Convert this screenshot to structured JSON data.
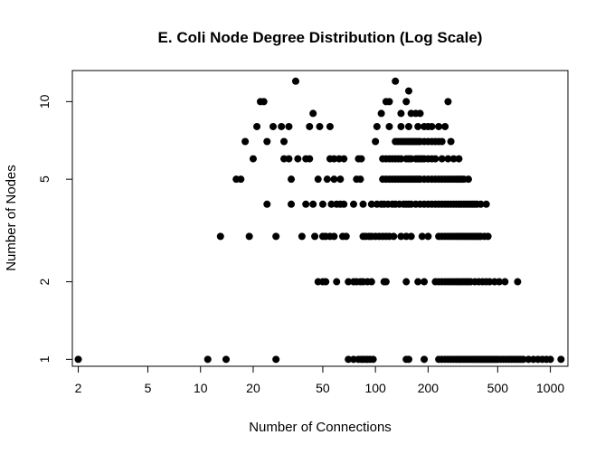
{
  "chart_data": {
    "type": "scatter",
    "title": "E. Coli Node Degree Distribution (Log Scale)",
    "xlabel": "Number of Connections",
    "ylabel": "Number of Nodes",
    "log_x": true,
    "log_y": true,
    "xlim": [
      1.85,
      1260
    ],
    "ylim": [
      0.94,
      13.2
    ],
    "x_ticks": [
      2,
      5,
      10,
      20,
      50,
      100,
      200,
      500,
      1000
    ],
    "x_tick_labels": [
      "2",
      "5",
      "10",
      "20",
      "50",
      "100",
      "200",
      "500",
      "1000"
    ],
    "y_ticks": [
      1,
      2,
      5,
      10
    ],
    "y_tick_labels": [
      "1",
      "2",
      "5",
      "10"
    ],
    "point_color": "#000000",
    "series": [
      {
        "points": [
          [
            2,
            1
          ],
          [
            11,
            1
          ],
          [
            14,
            1
          ],
          [
            27,
            1
          ],
          [
            70,
            1
          ],
          [
            75,
            1
          ],
          [
            80,
            1
          ],
          [
            83,
            1
          ],
          [
            85,
            1
          ],
          [
            88,
            1
          ],
          [
            90,
            1
          ],
          [
            93,
            1
          ],
          [
            97,
            1
          ],
          [
            150,
            1
          ],
          [
            155,
            1
          ],
          [
            190,
            1
          ],
          [
            230,
            1
          ],
          [
            240,
            1
          ],
          [
            250,
            1
          ],
          [
            260,
            1
          ],
          [
            270,
            1
          ],
          [
            280,
            1
          ],
          [
            290,
            1
          ],
          [
            300,
            1
          ],
          [
            310,
            1
          ],
          [
            320,
            1
          ],
          [
            330,
            1
          ],
          [
            340,
            1
          ],
          [
            350,
            1
          ],
          [
            360,
            1
          ],
          [
            370,
            1
          ],
          [
            380,
            1
          ],
          [
            390,
            1
          ],
          [
            400,
            1
          ],
          [
            410,
            1
          ],
          [
            420,
            1
          ],
          [
            430,
            1
          ],
          [
            440,
            1
          ],
          [
            450,
            1
          ],
          [
            460,
            1
          ],
          [
            470,
            1
          ],
          [
            480,
            1
          ],
          [
            490,
            1
          ],
          [
            500,
            1
          ],
          [
            520,
            1
          ],
          [
            540,
            1
          ],
          [
            560,
            1
          ],
          [
            580,
            1
          ],
          [
            600,
            1
          ],
          [
            620,
            1
          ],
          [
            640,
            1
          ],
          [
            660,
            1
          ],
          [
            680,
            1
          ],
          [
            700,
            1
          ],
          [
            750,
            1
          ],
          [
            800,
            1
          ],
          [
            850,
            1
          ],
          [
            900,
            1
          ],
          [
            950,
            1
          ],
          [
            1000,
            1
          ],
          [
            1150,
            1
          ],
          [
            47,
            2
          ],
          [
            50,
            2
          ],
          [
            52,
            2
          ],
          [
            60,
            2
          ],
          [
            70,
            2
          ],
          [
            75,
            2
          ],
          [
            78,
            2
          ],
          [
            82,
            2
          ],
          [
            85,
            2
          ],
          [
            90,
            2
          ],
          [
            95,
            2
          ],
          [
            112,
            2
          ],
          [
            115,
            2
          ],
          [
            150,
            2
          ],
          [
            175,
            2
          ],
          [
            190,
            2
          ],
          [
            220,
            2
          ],
          [
            230,
            2
          ],
          [
            240,
            2
          ],
          [
            250,
            2
          ],
          [
            260,
            2
          ],
          [
            270,
            2
          ],
          [
            280,
            2
          ],
          [
            290,
            2
          ],
          [
            300,
            2
          ],
          [
            310,
            2
          ],
          [
            320,
            2
          ],
          [
            330,
            2
          ],
          [
            340,
            2
          ],
          [
            350,
            2
          ],
          [
            370,
            2
          ],
          [
            390,
            2
          ],
          [
            410,
            2
          ],
          [
            430,
            2
          ],
          [
            450,
            2
          ],
          [
            480,
            2
          ],
          [
            510,
            2
          ],
          [
            550,
            2
          ],
          [
            650,
            2
          ],
          [
            13,
            3
          ],
          [
            19,
            3
          ],
          [
            27,
            3
          ],
          [
            38,
            3
          ],
          [
            45,
            3
          ],
          [
            50,
            3
          ],
          [
            52,
            3
          ],
          [
            55,
            3
          ],
          [
            58,
            3
          ],
          [
            65,
            3
          ],
          [
            68,
            3
          ],
          [
            85,
            3
          ],
          [
            88,
            3
          ],
          [
            92,
            3
          ],
          [
            95,
            3
          ],
          [
            100,
            3
          ],
          [
            105,
            3
          ],
          [
            110,
            3
          ],
          [
            115,
            3
          ],
          [
            120,
            3
          ],
          [
            127,
            3
          ],
          [
            140,
            3
          ],
          [
            150,
            3
          ],
          [
            160,
            3
          ],
          [
            185,
            3
          ],
          [
            200,
            3
          ],
          [
            230,
            3
          ],
          [
            240,
            3
          ],
          [
            250,
            3
          ],
          [
            260,
            3
          ],
          [
            270,
            3
          ],
          [
            280,
            3
          ],
          [
            290,
            3
          ],
          [
            300,
            3
          ],
          [
            310,
            3
          ],
          [
            320,
            3
          ],
          [
            330,
            3
          ],
          [
            340,
            3
          ],
          [
            350,
            3
          ],
          [
            360,
            3
          ],
          [
            370,
            3
          ],
          [
            380,
            3
          ],
          [
            390,
            3
          ],
          [
            400,
            3
          ],
          [
            420,
            3
          ],
          [
            440,
            3
          ],
          [
            24,
            4
          ],
          [
            33,
            4
          ],
          [
            40,
            4
          ],
          [
            44,
            4
          ],
          [
            50,
            4
          ],
          [
            56,
            4
          ],
          [
            60,
            4
          ],
          [
            63,
            4
          ],
          [
            66,
            4
          ],
          [
            75,
            4
          ],
          [
            85,
            4
          ],
          [
            95,
            4
          ],
          [
            102,
            4
          ],
          [
            108,
            4
          ],
          [
            112,
            4
          ],
          [
            118,
            4
          ],
          [
            125,
            4
          ],
          [
            130,
            4
          ],
          [
            137,
            4
          ],
          [
            145,
            4
          ],
          [
            150,
            4
          ],
          [
            155,
            4
          ],
          [
            160,
            4
          ],
          [
            170,
            4
          ],
          [
            180,
            4
          ],
          [
            190,
            4
          ],
          [
            200,
            4
          ],
          [
            210,
            4
          ],
          [
            220,
            4
          ],
          [
            230,
            4
          ],
          [
            240,
            4
          ],
          [
            250,
            4
          ],
          [
            260,
            4
          ],
          [
            270,
            4
          ],
          [
            280,
            4
          ],
          [
            290,
            4
          ],
          [
            300,
            4
          ],
          [
            310,
            4
          ],
          [
            320,
            4
          ],
          [
            330,
            4
          ],
          [
            340,
            4
          ],
          [
            350,
            4
          ],
          [
            360,
            4
          ],
          [
            370,
            4
          ],
          [
            380,
            4
          ],
          [
            400,
            4
          ],
          [
            430,
            4
          ],
          [
            16,
            5
          ],
          [
            17,
            5
          ],
          [
            33,
            5
          ],
          [
            47,
            5
          ],
          [
            53,
            5
          ],
          [
            58,
            5
          ],
          [
            63,
            5
          ],
          [
            78,
            5
          ],
          [
            82,
            5
          ],
          [
            110,
            5
          ],
          [
            115,
            5
          ],
          [
            120,
            5
          ],
          [
            125,
            5
          ],
          [
            130,
            5
          ],
          [
            135,
            5
          ],
          [
            140,
            5
          ],
          [
            145,
            5
          ],
          [
            150,
            5
          ],
          [
            155,
            5
          ],
          [
            160,
            5
          ],
          [
            165,
            5
          ],
          [
            170,
            5
          ],
          [
            175,
            5
          ],
          [
            180,
            5
          ],
          [
            190,
            5
          ],
          [
            200,
            5
          ],
          [
            210,
            5
          ],
          [
            220,
            5
          ],
          [
            230,
            5
          ],
          [
            240,
            5
          ],
          [
            250,
            5
          ],
          [
            260,
            5
          ],
          [
            270,
            5
          ],
          [
            280,
            5
          ],
          [
            290,
            5
          ],
          [
            300,
            5
          ],
          [
            310,
            5
          ],
          [
            320,
            5
          ],
          [
            340,
            5
          ],
          [
            20,
            6
          ],
          [
            30,
            6
          ],
          [
            32,
            6
          ],
          [
            36,
            6
          ],
          [
            40,
            6
          ],
          [
            42,
            6
          ],
          [
            55,
            6
          ],
          [
            58,
            6
          ],
          [
            62,
            6
          ],
          [
            66,
            6
          ],
          [
            80,
            6
          ],
          [
            83,
            6
          ],
          [
            110,
            6
          ],
          [
            115,
            6
          ],
          [
            120,
            6
          ],
          [
            125,
            6
          ],
          [
            130,
            6
          ],
          [
            135,
            6
          ],
          [
            140,
            6
          ],
          [
            150,
            6
          ],
          [
            155,
            6
          ],
          [
            160,
            6
          ],
          [
            170,
            6
          ],
          [
            175,
            6
          ],
          [
            180,
            6
          ],
          [
            185,
            6
          ],
          [
            190,
            6
          ],
          [
            200,
            6
          ],
          [
            210,
            6
          ],
          [
            220,
            6
          ],
          [
            240,
            6
          ],
          [
            260,
            6
          ],
          [
            280,
            6
          ],
          [
            300,
            6
          ],
          [
            18,
            7
          ],
          [
            24,
            7
          ],
          [
            30,
            7
          ],
          [
            100,
            7
          ],
          [
            130,
            7
          ],
          [
            135,
            7
          ],
          [
            140,
            7
          ],
          [
            145,
            7
          ],
          [
            150,
            7
          ],
          [
            155,
            7
          ],
          [
            160,
            7
          ],
          [
            165,
            7
          ],
          [
            170,
            7
          ],
          [
            175,
            7
          ],
          [
            180,
            7
          ],
          [
            190,
            7
          ],
          [
            200,
            7
          ],
          [
            210,
            7
          ],
          [
            220,
            7
          ],
          [
            230,
            7
          ],
          [
            240,
            7
          ],
          [
            270,
            7
          ],
          [
            21,
            8
          ],
          [
            26,
            8
          ],
          [
            29,
            8
          ],
          [
            32,
            8
          ],
          [
            42,
            8
          ],
          [
            48,
            8
          ],
          [
            55,
            8
          ],
          [
            102,
            8
          ],
          [
            120,
            8
          ],
          [
            140,
            8
          ],
          [
            155,
            8
          ],
          [
            175,
            8
          ],
          [
            190,
            8
          ],
          [
            200,
            8
          ],
          [
            210,
            8
          ],
          [
            230,
            8
          ],
          [
            250,
            8
          ],
          [
            44,
            9
          ],
          [
            108,
            9
          ],
          [
            140,
            9
          ],
          [
            160,
            9
          ],
          [
            170,
            9
          ],
          [
            180,
            9
          ],
          [
            22,
            10
          ],
          [
            23,
            10
          ],
          [
            115,
            10
          ],
          [
            120,
            10
          ],
          [
            150,
            10
          ],
          [
            260,
            10
          ],
          [
            155,
            11
          ],
          [
            35,
            12
          ],
          [
            130,
            12
          ]
        ]
      }
    ]
  }
}
